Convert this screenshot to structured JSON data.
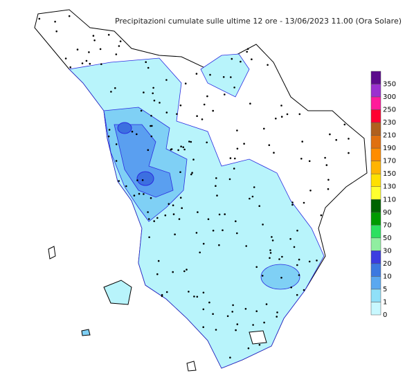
{
  "title": "Precipitazioni cumulate sulle ultime 12 ore - 13/06/2023 11.00 (Ora Solare)",
  "legend": {
    "items": [
      {
        "value": 350,
        "color": "#5c0a8c"
      },
      {
        "value": 300,
        "color": "#9a30cf"
      },
      {
        "value": 250,
        "color": "#ff1a9a"
      },
      {
        "value": 230,
        "color": "#ff0030"
      },
      {
        "value": 210,
        "color": "#b0601e"
      },
      {
        "value": 190,
        "color": "#e07010"
      },
      {
        "value": 170,
        "color": "#ff8c00"
      },
      {
        "value": 150,
        "color": "#ffb400"
      },
      {
        "value": 130,
        "color": "#ffe000"
      },
      {
        "value": 110,
        "color": "#ffff30"
      },
      {
        "value": 90,
        "color": "#006400"
      },
      {
        "value": 70,
        "color": "#009a00"
      },
      {
        "value": 50,
        "color": "#2de060"
      },
      {
        "value": 30,
        "color": "#90eea0"
      },
      {
        "value": 20,
        "color": "#3c3ce0"
      },
      {
        "value": 10,
        "color": "#3c78e0"
      },
      {
        "value": 5,
        "color": "#5aa8f0"
      },
      {
        "value": 1,
        "color": "#90e0f8"
      },
      {
        "value": 0,
        "color": "#c8f8ff"
      }
    ]
  }
}
